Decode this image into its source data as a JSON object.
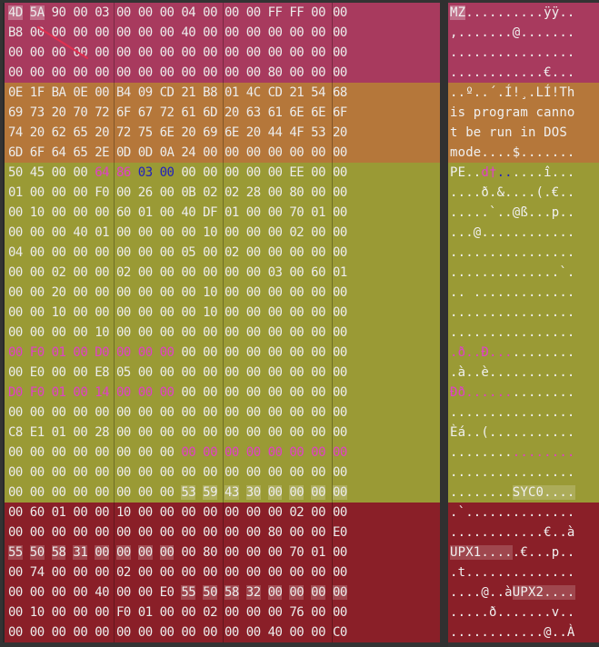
{
  "colors": {
    "mz_header": "#a83a5e",
    "dos_stub": "#b5773a",
    "pe_header": "#9a9a35",
    "section_table": "#8a1f28",
    "highlight_magenta": "#e040c8",
    "highlight_blue": "#2222bb",
    "annotation_arrow": "#e03050"
  },
  "rows": [
    {
      "region": "mz_header",
      "hex": "4D 5A 90 00 03 00 00 00 04 00 00 00 FF FF 00 00",
      "ascii": "MZ..........ÿÿ.."
    },
    {
      "region": "mz_header",
      "hex": "B8 00 00 00 00 00 00 00 40 00 00 00 00 00 00 00",
      "ascii": ",.......@......."
    },
    {
      "region": "mz_header",
      "hex": "00 00 00 00 00 00 00 00 00 00 00 00 00 00 00 00",
      "ascii": "................"
    },
    {
      "region": "mz_header",
      "hex": "00 00 00 00 00 00 00 00 00 00 00 00 80 00 00 00",
      "ascii": "............€..."
    },
    {
      "region": "dos_stub",
      "hex": "0E 1F BA 0E 00 B4 09 CD 21 B8 01 4C CD 21 54 68",
      "ascii": "..º..´.Í!¸.LÍ!Th"
    },
    {
      "region": "dos_stub",
      "hex": "69 73 20 70 72 6F 67 72 61 6D 20 63 61 6E 6E 6F",
      "ascii": "is program canno"
    },
    {
      "region": "dos_stub",
      "hex": "74 20 62 65 20 72 75 6E 20 69 6E 20 44 4F 53 20",
      "ascii": "t be run in DOS "
    },
    {
      "region": "dos_stub",
      "hex": "6D 6F 64 65 2E 0D 0D 0A 24 00 00 00 00 00 00 00",
      "ascii": "mode....$......."
    },
    {
      "region": "pe_header",
      "hex": "50 45 00 00 64 86 03 00 00 00 00 00 00 EE 00 00",
      "ascii": "PE..d†......î..."
    },
    {
      "region": "pe_header",
      "hex": "01 00 00 00 F0 00 26 00 0B 02 02 28 00 80 00 00",
      "ascii": "....ð.&....(.€.."
    },
    {
      "region": "pe_header",
      "hex": "00 10 00 00 00 60 01 00 40 DF 01 00 00 70 01 00",
      "ascii": ".....`..@ß...p.."
    },
    {
      "region": "pe_header",
      "hex": "00 00 00 40 01 00 00 00 00 10 00 00 00 02 00 00",
      "ascii": "...@............"
    },
    {
      "region": "pe_header",
      "hex": "04 00 00 00 00 00 00 00 05 00 02 00 00 00 00 00",
      "ascii": "................"
    },
    {
      "region": "pe_header",
      "hex": "00 00 02 00 00 02 00 00 00 00 00 00 03 00 60 01",
      "ascii": "..............`."
    },
    {
      "region": "pe_header",
      "hex": "00 00 20 00 00 00 00 00 00 10 00 00 00 00 00 00",
      "ascii": ".. ............."
    },
    {
      "region": "pe_header",
      "hex": "00 00 10 00 00 00 00 00 00 10 00 00 00 00 00 00",
      "ascii": "................"
    },
    {
      "region": "pe_header",
      "hex": "00 00 00 00 10 00 00 00 00 00 00 00 00 00 00 00",
      "ascii": "................"
    },
    {
      "region": "pe_header",
      "hex": "00 F0 01 00 D0 00 00 00 00 00 00 00 00 00 00 00",
      "ascii": ".ð..Ð..........."
    },
    {
      "region": "pe_header",
      "hex": "00 E0 00 00 E8 05 00 00 00 00 00 00 00 00 00 00",
      "ascii": ".à..è..........."
    },
    {
      "region": "pe_header",
      "hex": "D0 F0 01 00 14 00 00 00 00 00 00 00 00 00 00 00",
      "ascii": "Ðð.............."
    },
    {
      "region": "pe_header",
      "hex": "00 00 00 00 00 00 00 00 00 00 00 00 00 00 00 00",
      "ascii": "................"
    },
    {
      "region": "pe_header",
      "hex": "C8 E1 01 00 28 00 00 00 00 00 00 00 00 00 00 00",
      "ascii": "Èá..(..........."
    },
    {
      "region": "pe_header",
      "hex": "00 00 00 00 00 00 00 00 00 00 00 00 00 00 00 00",
      "ascii": "................"
    },
    {
      "region": "pe_header",
      "hex": "00 00 00 00 00 00 00 00 00 00 00 00 00 00 00 00",
      "ascii": "................"
    },
    {
      "region": "pe_header",
      "hex": "00 00 00 00 00 00 00 00 53 59 43 30 00 00 00 00",
      "ascii": "........SYC0...."
    },
    {
      "region": "section_table",
      "hex": "00 60 01 00 00 10 00 00 00 00 00 00 00 02 00 00",
      "ascii": ".`.............."
    },
    {
      "region": "section_table",
      "hex": "00 00 00 00 00 00 00 00 00 00 00 00 80 00 00 E0",
      "ascii": "............€..à"
    },
    {
      "region": "section_table",
      "hex": "55 50 58 31 00 00 00 00 00 80 00 00 00 70 01 00",
      "ascii": "UPX1.....€...p.."
    },
    {
      "region": "section_table",
      "hex": "00 74 00 00 00 02 00 00 00 00 00 00 00 00 00 00",
      "ascii": ".t.............."
    },
    {
      "region": "section_table",
      "hex": "00 00 00 00 40 00 00 E0 55 50 58 32 00 00 00 00",
      "ascii": "....@..àUPX2...."
    },
    {
      "region": "section_table",
      "hex": "00 10 00 00 00 F0 01 00 00 02 00 00 00 76 00 00",
      "ascii": ".....ð.......v.."
    },
    {
      "region": "section_table",
      "hex": "00 00 00 00 00 00 00 00 00 00 00 00 40 00 00 C0",
      "ascii": "............@..À"
    }
  ]
}
